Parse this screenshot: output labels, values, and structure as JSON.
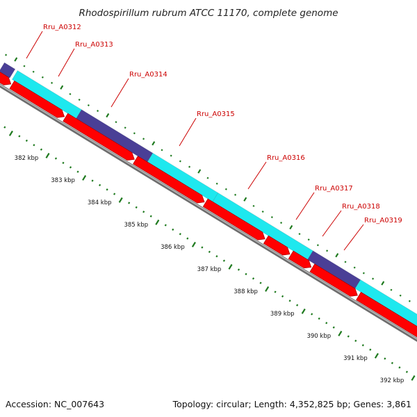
{
  "title": "Rhodospirillum rubrum ATCC 11170, complete genome",
  "footer": {
    "accession": "Accession: NC_007643",
    "summary": "Topology: circular; Length: 4,352,825 bp; Genes: 3,861"
  },
  "colors": {
    "background": "#ffffff",
    "backbone": "#8c8c8c",
    "cds": "#ff0000",
    "cds_edge": "#b00000",
    "feature_cyan": "#1ee8ee",
    "feature_navy": "#4a3f96",
    "ticks": "#1f7a1f",
    "gene_label": "#cc0000",
    "title": "#222222"
  },
  "scale_labels": [
    "382 kbp",
    "383 kbp",
    "384 kbp",
    "385 kbp",
    "386 kbp",
    "387 kbp",
    "388 kbp",
    "389 kbp",
    "390 kbp",
    "391 kbp",
    "392 kbp"
  ],
  "gene_labels": [
    "Rru_A0312",
    "Rru_A0313",
    "Rru_A0314",
    "Rru_A0315",
    "Rru_A0316",
    "Rru_A0317",
    "Rru_A0318",
    "Rru_A0319"
  ]
}
